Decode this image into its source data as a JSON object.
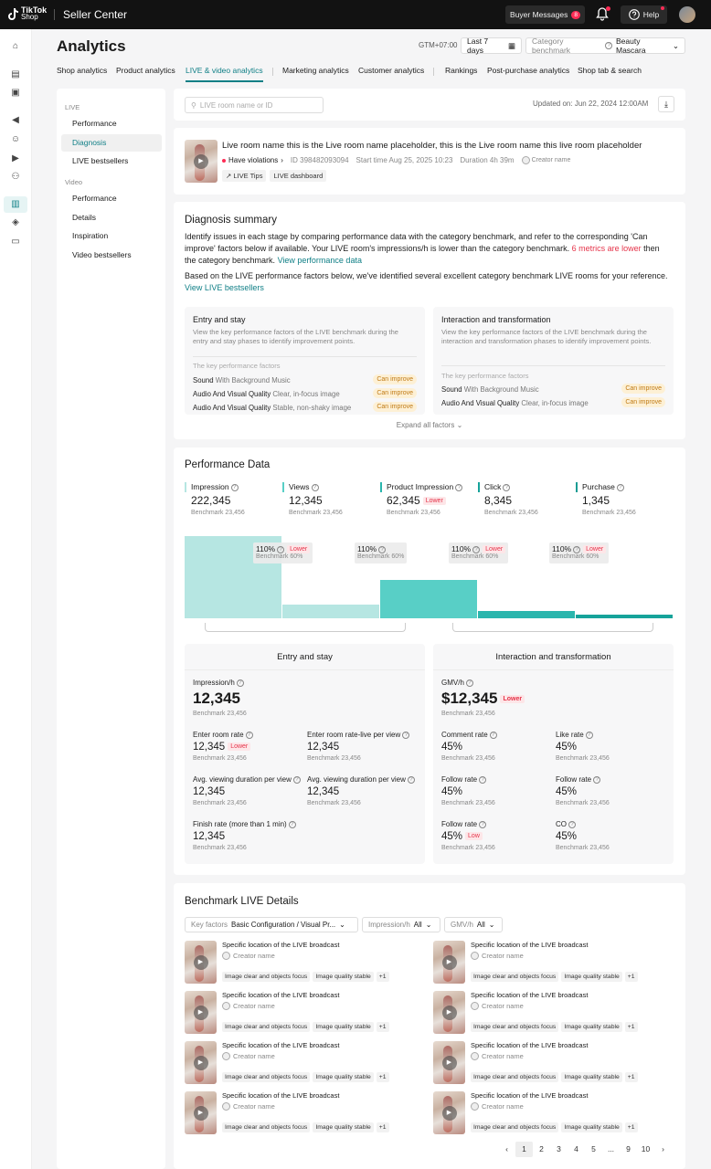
{
  "topbar": {
    "logo_top": "TikTok",
    "logo_bottom": "Shop",
    "app_name": "Seller Center",
    "buyer_messages": "Buyer Messages",
    "buyer_messages_count": "8",
    "help": "Help"
  },
  "page": {
    "title": "Analytics",
    "timezone": "GTM+07:00",
    "date_range": "Last 7 days",
    "benchmark_label": "Category benchmark",
    "benchmark_value": "Beauty Mascara"
  },
  "tabs": [
    "Shop analytics",
    "Product analytics",
    "LIVE & video analytics",
    "Marketing analytics",
    "Customer analytics",
    "Rankings",
    "Post-purchase analytics",
    "Shop tab & search"
  ],
  "left_nav": {
    "live_section": "LIVE",
    "live_items": [
      "Performance",
      "Diagnosis",
      "LIVE bestsellers"
    ],
    "video_section": "Video",
    "video_items": [
      "Performance",
      "Details",
      "Inspiration",
      "Video bestsellers"
    ]
  },
  "search": {
    "placeholder": "LIVE room name or ID",
    "updated": "Updated on: Jun 22, 2024 12:00AM"
  },
  "live_room": {
    "name": "Live room name this is the Live room name placeholder, this is the Live room name this live room placeholder",
    "violations": "Have violations",
    "id": "ID 398482093094",
    "start_time": "Start time Aug 25, 2025 10:23",
    "duration": "Duration 4h 39m",
    "creator": "Creator name",
    "tags": [
      "LIVE Tips",
      "LIVE dashboard"
    ]
  },
  "diagnosis": {
    "title": "Diagnosis summary",
    "p1_a": "Identify issues in each stage by comparing performance data with the category benchmark, and refer to the corresponding 'Can improve' factors below if available. Your LIVE room's impressions/h is lower than the category benchmark. ",
    "p1_red": "6 metrics are lower",
    "p1_b": " then the category benchmark. ",
    "p1_link": "View performance data",
    "p2_a": "Based on the LIVE performance factors below, we've identified several excellent category benchmark LIVE rooms for your reference. ",
    "p2_link": "View LIVE bestsellers",
    "boxes": [
      {
        "title": "Entry and stay",
        "desc": "View the key performance factors of the LIVE benchmark during the entry and stay phases to identify improvement points.",
        "kpf": "The key performance factors",
        "rows": [
          {
            "main": "Sound",
            "sub": "With Background Music",
            "tag": "Can improve"
          },
          {
            "main": "Audio And Visual Quality",
            "sub": "Clear, in-focus image",
            "tag": "Can improve"
          },
          {
            "main": "Audio And Visual Quality",
            "sub": "Stable, non-shaky image",
            "tag": "Can improve"
          }
        ]
      },
      {
        "title": "Interaction and transformation",
        "desc": "View the key performance factors of the LIVE benchmark during the interaction and transformation phases to identify improvement points.",
        "kpf": "The key performance factors",
        "rows": [
          {
            "main": "Sound",
            "sub": "With Background Music",
            "tag": "Can improve"
          },
          {
            "main": "Audio And Visual Quality",
            "sub": "Clear, in-focus image",
            "tag": "Can improve"
          }
        ]
      }
    ],
    "expand": "Expand all factors"
  },
  "performance": {
    "title": "Performance Data",
    "metrics": [
      {
        "label": "Impression",
        "value": "222,345",
        "benchmark": "Benchmark 23,456",
        "lower": ""
      },
      {
        "label": "Views",
        "value": "12,345",
        "benchmark": "Benchmark 23,456",
        "lower": ""
      },
      {
        "label": "Product Impression",
        "value": "62,345",
        "benchmark": "Benchmark 23,456",
        "lower": "Lower"
      },
      {
        "label": "Click",
        "value": "8,345",
        "benchmark": "Benchmark 23,456",
        "lower": ""
      },
      {
        "label": "Purchase",
        "value": "1,345",
        "benchmark": "Benchmark 23,456",
        "lower": ""
      }
    ],
    "bar_levels": [
      0.9,
      0.15,
      0.42,
      0.08,
      0.04
    ],
    "colors": [
      "#b6e6e2",
      "#b6e6e2",
      "#58cfc6",
      "#2ab6ad",
      "#16a39a",
      "#1a9c94"
    ],
    "conversions": [
      {
        "value": "110%",
        "benchmark": "Benchmark 60%",
        "lower": "Lower"
      },
      {
        "value": "110%",
        "benchmark": "Benchmark 60%",
        "lower": ""
      },
      {
        "value": "110%",
        "benchmark": "Benchmark 60%",
        "lower": "Lower"
      },
      {
        "value": "110%",
        "benchmark": "Benchmark 60%",
        "lower": "Lower"
      }
    ],
    "entry": {
      "title": "Entry and stay",
      "impression_h": {
        "label": "Impression/h",
        "value": "12,345",
        "benchmark": "Benchmark 23,456"
      },
      "items": [
        {
          "label": "Enter room rate",
          "value": "12,345",
          "benchmark": "Benchmark 23,456",
          "lower": "Lower"
        },
        {
          "label": "Enter room rate-live per view",
          "value": "12,345",
          "benchmark": "Benchmark 23,456",
          "lower": ""
        },
        {
          "label": "Avg. viewing duration per view",
          "value": "12,345",
          "benchmark": "Benchmark 23,456",
          "lower": ""
        },
        {
          "label": "Avg. viewing duration per view",
          "value": "12,345",
          "benchmark": "Benchmark 23,456",
          "lower": ""
        },
        {
          "label": "Finish rate (more than 1 min)",
          "value": "12,345",
          "benchmark": "Benchmark 23,456",
          "lower": ""
        }
      ]
    },
    "interaction": {
      "title": "Interaction and transformation",
      "gmv_h": {
        "label": "GMV/h",
        "value": "$12,345",
        "benchmark": "Benchmark 23,456",
        "lower": "Lower"
      },
      "items": [
        {
          "label": "Comment rate",
          "value": "45%",
          "benchmark": "Benchmark 23,456",
          "lower": ""
        },
        {
          "label": "Like rate",
          "value": "45%",
          "benchmark": "Benchmark 23,456",
          "lower": ""
        },
        {
          "label": "Follow rate",
          "value": "45%",
          "benchmark": "Benchmark 23,456",
          "lower": ""
        },
        {
          "label": "Follow rate",
          "value": "45%",
          "benchmark": "Benchmark 23,456",
          "lower": ""
        },
        {
          "label": "Follow rate",
          "value": "45%",
          "benchmark": "Benchmark 23,456",
          "lower": "Low"
        },
        {
          "label": "CO",
          "value": "45%",
          "benchmark": "Benchmark 23,456",
          "lower": ""
        }
      ]
    }
  },
  "benchmark_details": {
    "title": "Benchmark LIVE Details",
    "filters": [
      {
        "label": "Key factors",
        "value": "Basic Configuration / Visual Pr..."
      },
      {
        "label": "Impression/h",
        "value": "All"
      },
      {
        "label": "GMV/h",
        "value": "All"
      }
    ],
    "item": {
      "title": "Specific location of the LIVE broadcast",
      "creator": "Creator name",
      "tags": [
        "Image clear and objects focus",
        "Image quality stable",
        "+1"
      ]
    },
    "pages": [
      "1",
      "2",
      "3",
      "4",
      "5",
      "...",
      "9",
      "10"
    ]
  }
}
